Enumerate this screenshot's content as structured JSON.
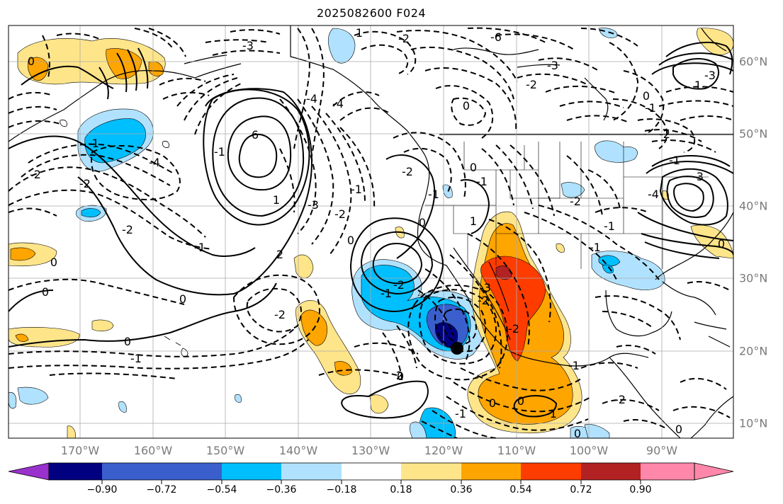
{
  "title": "2025082600 F024",
  "lon_labels": [
    "170°W",
    "160°W",
    "150°W",
    "140°W",
    "130°W",
    "120°W",
    "110°W",
    "100°W",
    "90°W"
  ],
  "lat_labels": [
    "60°N",
    "50°N",
    "40°N",
    "30°N",
    "20°N",
    "10°N"
  ],
  "colorbar": {
    "ticks": [
      "−0.90",
      "−0.72",
      "−0.54",
      "−0.36",
      "−0.18",
      "0.18",
      "0.36",
      "0.54",
      "0.72",
      "0.90"
    ],
    "colors": [
      "#9932cc",
      "#000080",
      "#3a5fcd",
      "#00bfff",
      "#b0e2ff",
      "#ffffff",
      "#ffe58a",
      "#ffa500",
      "#ff3c00",
      "#b22222",
      "#ff88aa"
    ]
  },
  "contour_labels": [
    "-3",
    "1",
    "-2",
    "-6",
    "-3",
    "-2",
    "0",
    "0",
    "-1",
    "-3",
    "1",
    "-4",
    "6",
    "-4",
    "-2",
    "-1",
    "-2",
    "-3",
    "-2",
    "-4",
    "-2",
    "-1",
    "0",
    "-2",
    "1",
    "2",
    "0",
    "-1",
    "0",
    "-2",
    "0",
    "-1",
    "0",
    "-2",
    "-1",
    "0",
    "-1",
    "2",
    "0",
    "1",
    "-2",
    "-3",
    "-2",
    "0",
    "-1",
    "-2",
    "-1",
    "-4",
    "-3",
    "-2",
    "-1",
    "0",
    "-1",
    "0",
    "-1",
    "-2",
    "-1",
    "0",
    "0",
    "-1",
    "0",
    "-1",
    "0"
  ],
  "marker": "filled-circle"
}
